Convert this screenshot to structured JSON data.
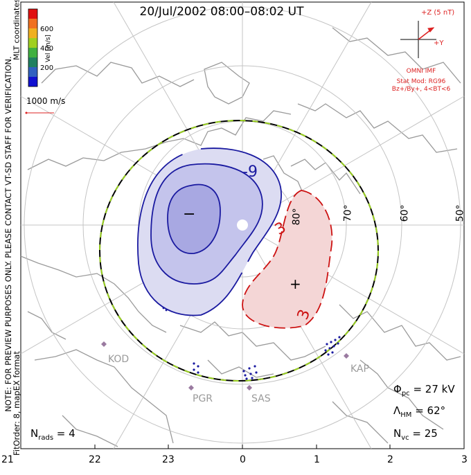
{
  "title": "20/Jul/2002 08:00–08:02 UT",
  "note_line1": "NOTE: FOR PREVIEW PURPOSES ONLY. PLEASE CONTACT VT-SD STAFF FOR VERIFICATION.",
  "note_line2": "FitOrder: 8, mapEX format",
  "coord_label": "MLT coordinates",
  "colorbar": {
    "unit": "Vel [m/s]",
    "ticks": [
      "600",
      "400",
      "200"
    ],
    "colors": [
      "#e01010",
      "#f07020",
      "#f0b020",
      "#a0d020",
      "#40b040",
      "#208060",
      "#3060c0",
      "#1010d0"
    ]
  },
  "scale_vector_label": "1000 m/s",
  "imf": {
    "scale_label": "+Z (5 nT)",
    "y_label": "+Y",
    "source": "OMNI IMF",
    "model": "Stat Mod: RG96",
    "conditions": "Bz+/By+, 4<BT<6"
  },
  "latitude_labels": [
    "80°",
    "70°",
    "60°",
    "50°"
  ],
  "contour_labels": [
    "-9",
    "3",
    "3"
  ],
  "extrema_marks": {
    "minimum": "−",
    "maximum": "+"
  },
  "radar_sites": [
    "KOD",
    "PGR",
    "SAS",
    "KAP"
  ],
  "stats": {
    "phi_symbol": "Φ",
    "phi_sub": "pc",
    "phi_value": " = 27 kV",
    "lambda_symbol": "Λ",
    "lambda_sub": "HM",
    "lambda_value": " = 62°",
    "nvc_symbol": "N",
    "nvc_sub": "vc",
    "nvc_value": " = 25",
    "nrads_symbol": "N",
    "nrads_sub": "rads",
    "nrads_value": " = 4"
  },
  "mlt_axis": [
    "21",
    "22",
    "23",
    "0",
    "1",
    "2",
    "3"
  ],
  "styles": {
    "negative_contour": "#1a1aa0",
    "positive_contour": "#cc1111",
    "coastline": "#9a9a9a",
    "grid": "#c4c4c4",
    "boundary_dash": "#9ad020"
  }
}
